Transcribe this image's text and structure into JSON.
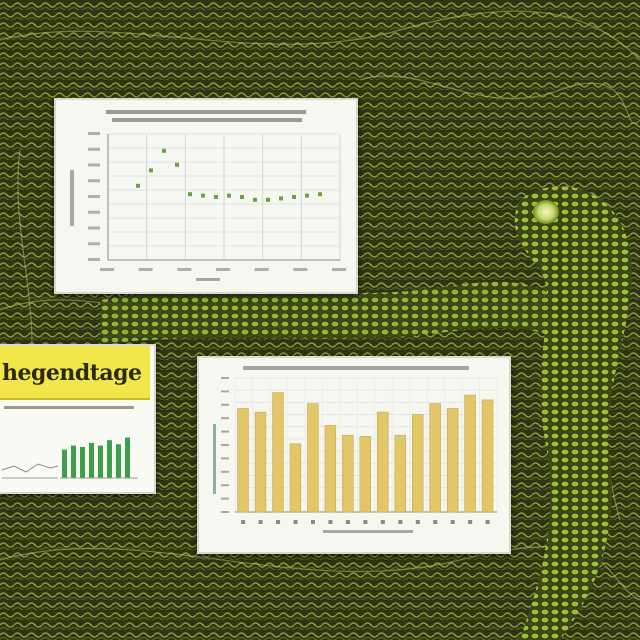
{
  "banner": {
    "text": "hegendtage"
  },
  "colors": {
    "scatter_point": "#6aa43a",
    "bar_fill": "#e2c76a",
    "banner_bg": "#f2e64a",
    "mini_bar": "#3aa04a",
    "background_moss": "#3b4219"
  },
  "chart_data": [
    {
      "type": "scatter",
      "title": "",
      "xlabel": "",
      "ylabel": "",
      "grid": true,
      "x": [
        1,
        2,
        3,
        4,
        5,
        6,
        7,
        8,
        9,
        10,
        11,
        12,
        13,
        14,
        15
      ],
      "y": [
        5.3,
        6.4,
        7.8,
        6.8,
        4.7,
        4.6,
        4.5,
        4.6,
        4.5,
        4.3,
        4.3,
        4.4,
        4.5,
        4.6,
        4.7
      ],
      "ylim": [
        0,
        9
      ]
    },
    {
      "type": "bar",
      "title": "",
      "xlabel": "",
      "ylabel": "",
      "grid": true,
      "values": [
        8.5,
        8.2,
        9.8,
        5.6,
        8.9,
        7.1,
        6.3,
        6.2,
        8.2,
        6.3,
        8.0,
        8.9,
        8.5,
        9.6,
        9.2
      ],
      "ylim": [
        0,
        11
      ]
    },
    {
      "type": "bar",
      "title": "",
      "values": [
        2.1,
        2.4,
        2.3,
        2.6,
        2.4,
        2.8,
        2.5,
        3.0
      ],
      "ylim": [
        0,
        4
      ]
    }
  ]
}
